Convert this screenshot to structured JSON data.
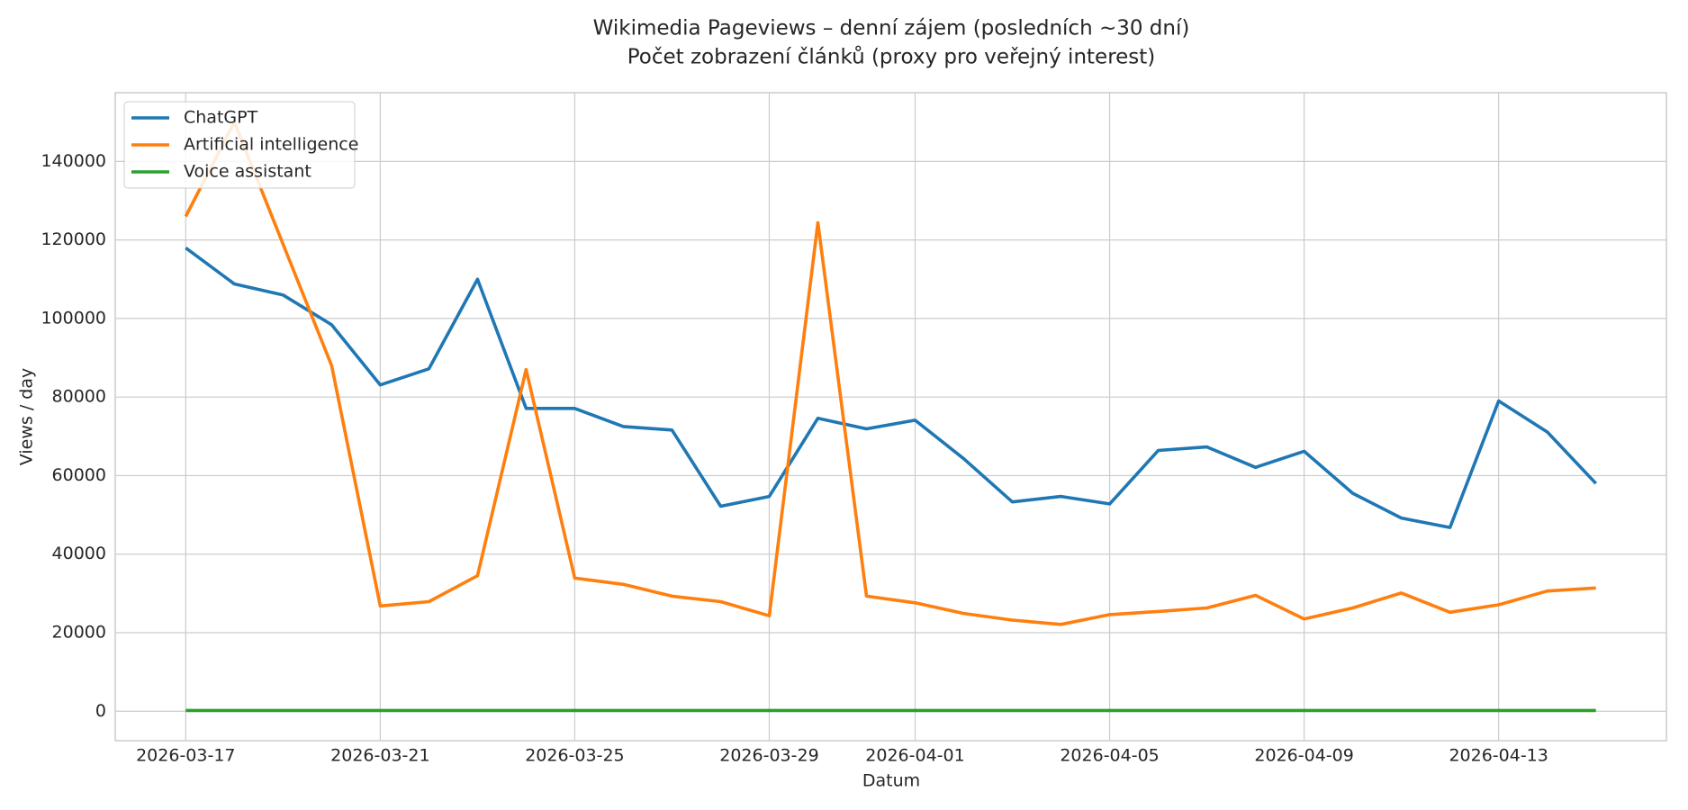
{
  "chart_data": {
    "type": "line",
    "title": "Wikimedia Pageviews – denní zájem (posledních ~30 dní)",
    "subtitle": "Počet zobrazení článků (proxy pro veřejný interest)",
    "x_label": "Datum",
    "y_label": "Views / day",
    "x": [
      "2026-03-17",
      "2026-03-18",
      "2026-03-19",
      "2026-03-20",
      "2026-03-21",
      "2026-03-22",
      "2026-03-23",
      "2026-03-24",
      "2026-03-25",
      "2026-03-26",
      "2026-03-27",
      "2026-03-28",
      "2026-03-29",
      "2026-03-30",
      "2026-03-31",
      "2026-04-01",
      "2026-04-02",
      "2026-04-03",
      "2026-04-04",
      "2026-04-05",
      "2026-04-06",
      "2026-04-07",
      "2026-04-08",
      "2026-04-09",
      "2026-04-10",
      "2026-04-11",
      "2026-04-12",
      "2026-04-13",
      "2026-04-14",
      "2026-04-15"
    ],
    "xticks": [
      "2026-03-17",
      "2026-03-21",
      "2026-03-25",
      "2026-03-29",
      "2026-04-01",
      "2026-04-05",
      "2026-04-09",
      "2026-04-13"
    ],
    "series": [
      {
        "name": "ChatGPT",
        "color": "#1f77b4",
        "values": [
          118000,
          108800,
          106000,
          98400,
          83100,
          87200,
          110000,
          77100,
          77100,
          72500,
          71600,
          52200,
          54700,
          74600,
          71900,
          74100,
          64300,
          53300,
          54700,
          52800,
          66400,
          67300,
          62100,
          66200,
          55500,
          49200,
          46800,
          79000,
          71100,
          58000
        ]
      },
      {
        "name": "Artificial intelligence",
        "color": "#ff7f0e",
        "values": [
          126000,
          150000,
          119000,
          88000,
          26800,
          27900,
          34500,
          87000,
          33900,
          32300,
          29300,
          27900,
          24300,
          124400,
          29300,
          27600,
          24900,
          23200,
          22100,
          24600,
          25400,
          26300,
          29500,
          23500,
          26300,
          30100,
          25200,
          27100,
          30600,
          31400
        ]
      },
      {
        "name": "Voice assistant",
        "color": "#2ca02c",
        "values": [
          200,
          200,
          200,
          200,
          200,
          200,
          200,
          200,
          200,
          200,
          200,
          200,
          200,
          200,
          200,
          200,
          200,
          200,
          200,
          200,
          200,
          200,
          200,
          200,
          200,
          200,
          200,
          200,
          200,
          200
        ]
      }
    ],
    "ylim": [
      -7500,
      157500
    ],
    "yticks": [
      0,
      20000,
      40000,
      60000,
      80000,
      100000,
      120000,
      140000
    ],
    "grid": true,
    "legend": "upper left"
  }
}
